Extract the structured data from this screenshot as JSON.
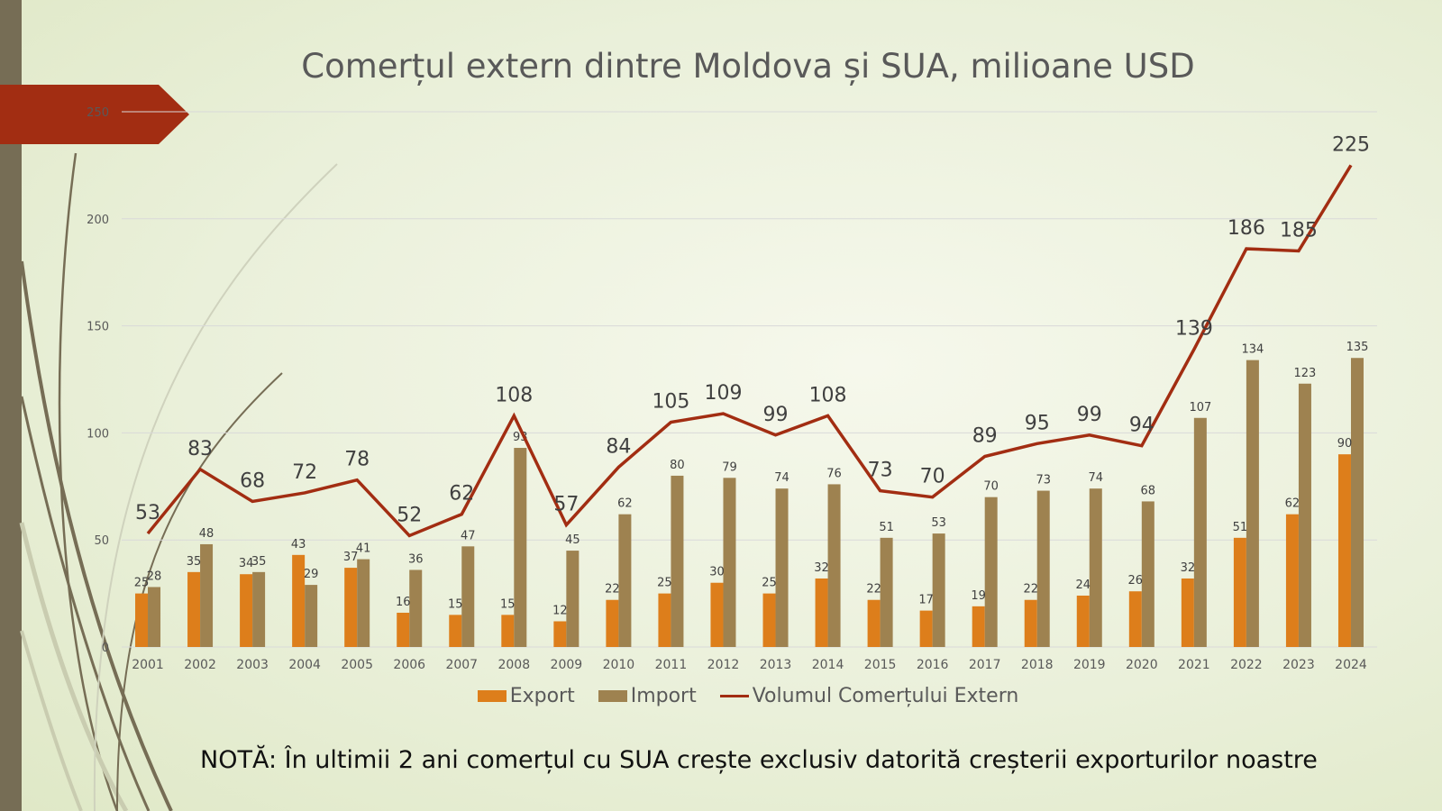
{
  "colors": {
    "export": "#dd7e1b",
    "import": "#9e8250",
    "volume": "#a22d12",
    "banner": "#a22d12"
  },
  "chart_data": {
    "type": "bar",
    "title": "Comerțul extern dintre Moldova și SUA, milioane USD",
    "categories": [
      "2001",
      "2002",
      "2003",
      "2004",
      "2005",
      "2006",
      "2007",
      "2008",
      "2009",
      "2010",
      "2011",
      "2012",
      "2013",
      "2014",
      "2015",
      "2016",
      "2017",
      "2018",
      "2019",
      "2020",
      "2021",
      "2022",
      "2023",
      "2024"
    ],
    "series": [
      {
        "name": "Export",
        "type": "bar",
        "values": [
          25,
          35,
          34,
          43,
          37,
          16,
          15,
          15,
          12,
          22,
          25,
          30,
          25,
          32,
          22,
          17,
          19,
          22,
          24,
          26,
          32,
          51,
          62,
          90
        ]
      },
      {
        "name": "Import",
        "type": "bar",
        "values": [
          28,
          48,
          35,
          29,
          41,
          36,
          47,
          93,
          45,
          62,
          80,
          79,
          74,
          76,
          51,
          53,
          70,
          73,
          74,
          68,
          107,
          134,
          123,
          135
        ]
      },
      {
        "name": "Volumul Comerțului Extern",
        "type": "line",
        "values": [
          53,
          83,
          68,
          72,
          78,
          52,
          62,
          108,
          57,
          84,
          105,
          109,
          99,
          108,
          73,
          70,
          89,
          95,
          99,
          94,
          139,
          186,
          185,
          225
        ]
      }
    ],
    "ylim": [
      0,
      250
    ],
    "yticks": [
      "0",
      "50",
      "100",
      "150",
      "200",
      "250"
    ],
    "grid": true,
    "legend": "bottom"
  },
  "note": "NOTĂ: În ultimii 2 ani comerțul cu SUA  crește exclusiv datorită creșterii exporturilor noastre"
}
